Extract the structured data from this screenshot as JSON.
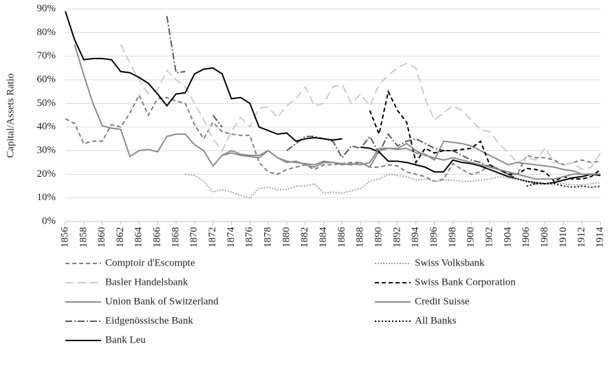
{
  "chart_data": {
    "type": "line",
    "y_label": "Capital/Assets Ratio",
    "x": [
      1856,
      1857,
      1858,
      1859,
      1860,
      1861,
      1862,
      1863,
      1864,
      1865,
      1866,
      1867,
      1868,
      1869,
      1870,
      1871,
      1872,
      1873,
      1874,
      1875,
      1876,
      1877,
      1878,
      1879,
      1880,
      1881,
      1882,
      1883,
      1884,
      1885,
      1886,
      1887,
      1888,
      1889,
      1890,
      1891,
      1892,
      1893,
      1894,
      1895,
      1896,
      1897,
      1898,
      1899,
      1900,
      1901,
      1902,
      1903,
      1904,
      1905,
      1906,
      1907,
      1908,
      1909,
      1910,
      1911,
      1912,
      1913,
      1914
    ],
    "xlim": [
      1856,
      1914
    ],
    "xticks": [
      1856,
      1858,
      1860,
      1862,
      1864,
      1866,
      1868,
      1870,
      1872,
      1874,
      1876,
      1878,
      1880,
      1882,
      1884,
      1886,
      1888,
      1890,
      1892,
      1894,
      1896,
      1898,
      1900,
      1902,
      1904,
      1906,
      1908,
      1910,
      1912,
      1914
    ],
    "ylim": [
      0,
      90
    ],
    "yticks": [
      {
        "value": 0,
        "label": "0%"
      },
      {
        "value": 10,
        "label": "10%"
      },
      {
        "value": 20,
        "label": "20%"
      },
      {
        "value": 30,
        "label": "30%"
      },
      {
        "value": 40,
        "label": "40%"
      },
      {
        "value": 50,
        "label": "50%"
      },
      {
        "value": 60,
        "label": "60%"
      },
      {
        "value": 70,
        "label": "70%"
      },
      {
        "value": 80,
        "label": "80%"
      },
      {
        "value": 90,
        "label": "90%"
      }
    ],
    "grid": true,
    "legend": "bottom",
    "series": [
      {
        "name": "Comptoir d'Escompte",
        "color": "#7f7f7f",
        "dash": "6,4",
        "values": [
          43.5,
          41.5,
          33,
          34,
          34,
          41,
          40,
          46,
          53.5,
          45,
          52,
          52.5,
          51,
          50,
          41,
          35,
          42,
          38,
          37,
          36.5,
          36.5,
          25,
          21,
          20,
          22,
          23,
          24,
          22,
          24,
          24,
          24.5,
          25,
          25,
          23,
          23,
          24,
          23.5,
          21,
          20,
          19,
          17,
          18,
          24.5,
          22,
          20,
          21,
          24,
          22,
          20,
          20,
          28,
          27,
          27,
          26,
          24,
          25,
          26,
          25,
          25.5
        ]
      },
      {
        "name": "Basler Handelsbank",
        "color": "#cccccc",
        "dash": "12,6",
        "values": [
          null,
          null,
          null,
          null,
          null,
          null,
          75,
          67,
          60,
          54,
          56,
          64,
          60,
          57,
          50,
          43,
          35,
          30,
          38,
          44,
          40,
          48,
          48.5,
          44,
          49,
          52,
          57,
          49,
          50,
          57,
          58,
          50,
          54,
          49,
          58,
          62,
          65,
          67,
          65,
          52,
          43,
          46,
          49,
          47,
          43,
          39,
          38,
          33,
          29,
          25,
          27,
          26,
          31,
          25,
          24,
          25,
          22,
          23,
          29
        ]
      },
      {
        "name": "Union Bank of Switzerland",
        "color": "#8c8c8c",
        "dash": "none",
        "values": [
          null,
          75,
          62,
          50,
          40.5,
          39.5,
          39,
          27.5,
          30,
          30.5,
          29.5,
          36,
          37,
          37,
          32.5,
          30,
          23.5,
          28,
          30,
          28.5,
          28,
          28,
          30,
          27,
          25,
          25.5,
          24,
          23,
          25,
          25,
          24.5,
          24,
          25,
          23,
          30,
          31,
          30.5,
          31,
          29,
          28.5,
          26,
          34,
          33.5,
          33,
          32,
          30,
          28,
          26,
          24,
          25,
          24.5,
          24,
          23.5,
          23,
          22,
          21.5,
          20,
          20,
          20
        ]
      },
      {
        "name": "Eidgenössische Bank",
        "color": "#595959",
        "dash": "10,3,2,3",
        "values": [
          null,
          null,
          null,
          null,
          null,
          null,
          null,
          null,
          null,
          null,
          null,
          87,
          63,
          63.5,
          null,
          null,
          45,
          40,
          null,
          null,
          null,
          null,
          null,
          null,
          30,
          33,
          36,
          36,
          35,
          34,
          27,
          32,
          31,
          36,
          29,
          37,
          32,
          34,
          35,
          33,
          31,
          30,
          30,
          28,
          26,
          25,
          23,
          22,
          20,
          18,
          17,
          16,
          16,
          null,
          null,
          null,
          null,
          null,
          null
        ]
      },
      {
        "name": "Bank Leu",
        "color": "#000000",
        "dash": "none",
        "values": [
          89,
          77,
          68.5,
          69,
          69,
          68.5,
          63.5,
          63,
          61,
          58.5,
          54,
          49,
          54,
          54.5,
          62.5,
          64.5,
          65,
          62.5,
          52,
          52.5,
          50,
          40,
          38.5,
          37,
          37.5,
          34,
          35,
          35.5,
          35,
          34.5,
          35,
          null,
          31.5,
          31,
          29.5,
          25.5,
          25.5,
          25,
          24,
          23,
          21,
          21,
          26,
          25,
          24.5,
          23.5,
          22,
          20.5,
          19,
          18,
          17,
          16.5,
          16,
          16.5,
          17.5,
          18.5,
          19,
          20,
          19.5
        ]
      },
      {
        "name": "Swiss Volksbank",
        "color": "#a6a6a6",
        "dash": "2,2",
        "values": [
          null,
          null,
          null,
          null,
          null,
          null,
          null,
          null,
          null,
          null,
          null,
          null,
          null,
          20,
          19.5,
          17,
          12.5,
          13.5,
          12.5,
          11,
          10,
          14,
          14.5,
          13.5,
          13.5,
          15,
          15,
          16,
          12,
          12.5,
          12,
          13,
          14,
          17,
          18,
          20,
          19.5,
          19,
          17.5,
          18,
          17,
          17.5,
          17.5,
          17,
          17,
          17.5,
          18,
          19,
          18.5,
          18,
          17,
          16.5,
          16,
          16,
          16,
          15.5,
          15.5,
          16,
          16.5
        ]
      },
      {
        "name": "Swiss Bank Corporation",
        "color": "#000000",
        "dash": "6,4",
        "values": [
          null,
          null,
          null,
          null,
          null,
          null,
          null,
          null,
          null,
          null,
          null,
          null,
          null,
          null,
          null,
          null,
          null,
          null,
          null,
          null,
          null,
          null,
          null,
          null,
          null,
          null,
          null,
          null,
          null,
          null,
          null,
          null,
          null,
          47,
          37,
          55,
          47,
          42,
          25,
          31,
          29,
          30,
          30,
          30.5,
          31,
          34,
          24,
          22,
          20,
          20,
          22.5,
          22,
          21,
          17,
          19,
          18,
          18,
          19,
          22
        ]
      },
      {
        "name": "Credit Suisse",
        "color": "#8c8c8c",
        "dash": "none",
        "values": [
          null,
          null,
          null,
          null,
          null,
          null,
          null,
          null,
          null,
          null,
          null,
          null,
          null,
          null,
          null,
          null,
          null,
          28,
          29,
          28,
          27.5,
          27,
          30,
          27,
          25.5,
          25,
          24.5,
          24,
          25.5,
          25,
          24,
          24.5,
          24,
          25,
          31,
          31,
          31,
          33,
          30,
          28,
          27,
          26,
          27,
          26,
          25,
          24,
          23,
          22,
          21,
          20,
          19,
          18,
          18,
          18,
          19,
          20,
          20,
          20,
          20
        ]
      },
      {
        "name": "All Banks",
        "color": "#000000",
        "dash": "2,3",
        "values": [
          null,
          null,
          null,
          null,
          null,
          null,
          null,
          null,
          null,
          null,
          null,
          null,
          null,
          null,
          null,
          null,
          null,
          null,
          null,
          null,
          null,
          null,
          null,
          null,
          null,
          null,
          null,
          null,
          null,
          null,
          null,
          null,
          null,
          null,
          null,
          null,
          null,
          null,
          null,
          null,
          null,
          null,
          null,
          null,
          null,
          null,
          null,
          null,
          null,
          null,
          15,
          16,
          16,
          16,
          15,
          14.5,
          15,
          14.5,
          15
        ]
      }
    ]
  }
}
